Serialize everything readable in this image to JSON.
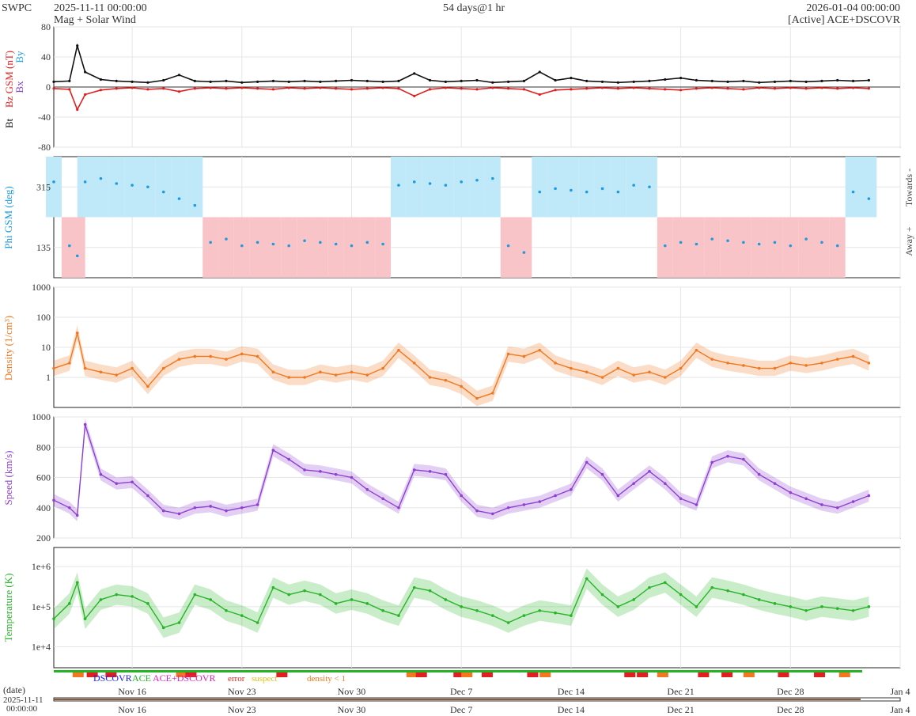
{
  "header": {
    "org": "SWPC",
    "start": "2025-11-11 00:00:00",
    "subtitle": "Mag + Solar Wind",
    "span": "54 days@1 hr",
    "end": "2026-01-04 00:00:00",
    "source": "[Active] ACE+DSCOVR"
  },
  "legend": {
    "dscovr": "DSCOVR",
    "ace": "ACE",
    "both": "ACE+DSCOVR",
    "error": "error",
    "suspect": "suspect",
    "density": "density < 1"
  },
  "date_label": {
    "title": "(date)",
    "line1": "2025-11-11",
    "line2": "00:00:00"
  },
  "x_ticks": [
    "Nov 16",
    "Nov 23",
    "Nov 30",
    "Dec 7",
    "Dec 14",
    "Dec 21",
    "Dec 28",
    "Jan 4"
  ],
  "chart_data": [
    {
      "type": "line",
      "panel": "mag",
      "ylabel_parts": [
        "Bt",
        "Bz GSM (nT)",
        "Bx",
        "By"
      ],
      "ylim": [
        -80,
        80
      ],
      "yticks": [
        "80",
        "40",
        "0",
        "-40",
        "-80"
      ],
      "x_days": [
        0,
        1,
        1.5,
        2,
        3,
        4,
        5,
        6,
        7,
        8,
        9,
        10,
        11,
        12,
        13,
        14,
        15,
        16,
        17,
        18,
        19,
        20,
        21,
        22,
        23,
        24,
        25,
        26,
        27,
        28,
        29,
        30,
        31,
        32,
        33,
        34,
        35,
        36,
        37,
        38,
        39,
        40,
        41,
        42,
        43,
        44,
        45,
        46,
        47,
        48,
        49,
        50,
        51,
        52
      ],
      "series": [
        {
          "name": "Bt",
          "color": "#111111",
          "values": [
            7,
            8,
            55,
            20,
            10,
            8,
            7,
            6,
            9,
            16,
            8,
            7,
            8,
            6,
            7,
            8,
            7,
            8,
            7,
            8,
            9,
            8,
            7,
            8,
            18,
            9,
            7,
            8,
            9,
            6,
            7,
            8,
            20,
            9,
            12,
            8,
            7,
            6,
            7,
            8,
            10,
            12,
            9,
            8,
            7,
            8,
            6,
            7,
            8,
            7,
            8,
            9,
            8,
            9
          ]
        },
        {
          "name": "Bz",
          "color": "#e02020",
          "values": [
            -2,
            -3,
            -30,
            -10,
            -4,
            -2,
            -1,
            -3,
            -2,
            -6,
            -2,
            -1,
            -2,
            -1,
            -2,
            -3,
            -1,
            -2,
            -1,
            -2,
            -3,
            -2,
            -1,
            -2,
            -12,
            -3,
            -1,
            -2,
            -3,
            -1,
            -2,
            -3,
            -10,
            -4,
            -3,
            -2,
            -1,
            -2,
            -1,
            -2,
            -3,
            -4,
            -2,
            -1,
            -2,
            -3,
            -1,
            -2,
            -1,
            -2,
            -1,
            -2,
            -1,
            -2
          ]
        }
      ]
    },
    {
      "type": "scatter",
      "panel": "phi",
      "ylabel": "Phi GSM (deg)",
      "ylim": [
        45,
        405
      ],
      "yticks": [
        "315",
        "135"
      ],
      "right_labels": [
        "Towards -",
        "Away +"
      ],
      "x_days": [
        0,
        1,
        1.5,
        2,
        3,
        4,
        5,
        6,
        7,
        8,
        9,
        10,
        11,
        12,
        13,
        14,
        15,
        16,
        17,
        18,
        19,
        20,
        21,
        22,
        23,
        24,
        25,
        26,
        27,
        28,
        29,
        30,
        31,
        32,
        33,
        34,
        35,
        36,
        37,
        38,
        39,
        40,
        41,
        42,
        43,
        44,
        45,
        46,
        47,
        48,
        49,
        50,
        51,
        52
      ],
      "values": [
        330,
        140,
        110,
        330,
        340,
        325,
        320,
        315,
        300,
        280,
        260,
        150,
        160,
        140,
        150,
        145,
        140,
        155,
        150,
        145,
        140,
        150,
        145,
        320,
        330,
        325,
        320,
        330,
        335,
        340,
        140,
        120,
        300,
        310,
        305,
        300,
        310,
        300,
        320,
        315,
        140,
        150,
        145,
        160,
        155,
        150,
        145,
        150,
        140,
        160,
        150,
        140,
        300,
        280
      ],
      "colors": {
        "toward": "#bfe8f8",
        "away": "#f8c4c8",
        "points": "#1e9be0"
      }
    },
    {
      "type": "line",
      "panel": "density",
      "ylabel": "Density (1/cm³)",
      "scale": "log",
      "ylim": [
        0.1,
        1000
      ],
      "yticks": [
        "1000",
        "100",
        "10",
        "1"
      ],
      "color": "#f07820",
      "x_days": [
        0,
        1,
        1.5,
        2,
        3,
        4,
        5,
        6,
        7,
        8,
        9,
        10,
        11,
        12,
        13,
        14,
        15,
        16,
        17,
        18,
        19,
        20,
        21,
        22,
        23,
        24,
        25,
        26,
        27,
        28,
        29,
        30,
        31,
        32,
        33,
        34,
        35,
        36,
        37,
        38,
        39,
        40,
        41,
        42,
        43,
        44,
        45,
        46,
        47,
        48,
        49,
        50,
        51,
        52
      ],
      "values": [
        2,
        3,
        30,
        2,
        1.5,
        1.2,
        2,
        0.5,
        2,
        4,
        5,
        5,
        4,
        6,
        5,
        1.5,
        1,
        1,
        1.5,
        1.2,
        1.5,
        1.2,
        2,
        8,
        3,
        1,
        0.8,
        0.5,
        0.2,
        0.3,
        6,
        5,
        8,
        3,
        2,
        1.5,
        1,
        2,
        1.2,
        1.5,
        1,
        2,
        8,
        4,
        3,
        2.5,
        2,
        2,
        3,
        2.5,
        3,
        4,
        5,
        3
      ]
    },
    {
      "type": "line",
      "panel": "speed",
      "ylabel": "Speed (km/s)",
      "ylim": [
        200,
        1000
      ],
      "yticks": [
        "1000",
        "800",
        "600",
        "400",
        "200"
      ],
      "color": "#9040d0",
      "x_days": [
        0,
        1,
        1.5,
        2,
        3,
        4,
        5,
        6,
        7,
        8,
        9,
        10,
        11,
        12,
        13,
        14,
        15,
        16,
        17,
        18,
        19,
        20,
        21,
        22,
        23,
        24,
        25,
        26,
        27,
        28,
        29,
        30,
        31,
        32,
        33,
        34,
        35,
        36,
        37,
        38,
        39,
        40,
        41,
        42,
        43,
        44,
        45,
        46,
        47,
        48,
        49,
        50,
        51,
        52
      ],
      "values": [
        450,
        400,
        350,
        950,
        620,
        560,
        570,
        480,
        380,
        360,
        400,
        410,
        380,
        400,
        420,
        780,
        720,
        650,
        640,
        620,
        600,
        520,
        460,
        400,
        650,
        640,
        620,
        480,
        380,
        360,
        400,
        420,
        440,
        480,
        520,
        700,
        620,
        480,
        560,
        640,
        560,
        460,
        420,
        700,
        740,
        720,
        620,
        560,
        500,
        460,
        420,
        400,
        440,
        480
      ]
    },
    {
      "type": "line",
      "panel": "temperature",
      "ylabel": "Temperature (K)",
      "scale": "log",
      "ylim": [
        3000,
        3000000
      ],
      "yticks": [
        "1e+6",
        "1e+5",
        "1e+4"
      ],
      "color": "#28b428",
      "x_days": [
        0,
        1,
        1.5,
        2,
        3,
        4,
        5,
        6,
        7,
        8,
        9,
        10,
        11,
        12,
        13,
        14,
        15,
        16,
        17,
        18,
        19,
        20,
        21,
        22,
        23,
        24,
        25,
        26,
        27,
        28,
        29,
        30,
        31,
        32,
        33,
        34,
        35,
        36,
        37,
        38,
        39,
        40,
        41,
        42,
        43,
        44,
        45,
        46,
        47,
        48,
        49,
        50,
        51,
        52
      ],
      "values": [
        50000,
        120000,
        400000,
        50000,
        150000,
        200000,
        180000,
        120000,
        30000,
        40000,
        200000,
        150000,
        80000,
        60000,
        40000,
        300000,
        200000,
        250000,
        200000,
        120000,
        150000,
        120000,
        80000,
        60000,
        300000,
        250000,
        150000,
        100000,
        80000,
        60000,
        40000,
        60000,
        80000,
        70000,
        60000,
        500000,
        200000,
        100000,
        150000,
        300000,
        400000,
        200000,
        100000,
        300000,
        250000,
        200000,
        150000,
        120000,
        100000,
        80000,
        100000,
        90000,
        80000,
        100000
      ]
    }
  ]
}
